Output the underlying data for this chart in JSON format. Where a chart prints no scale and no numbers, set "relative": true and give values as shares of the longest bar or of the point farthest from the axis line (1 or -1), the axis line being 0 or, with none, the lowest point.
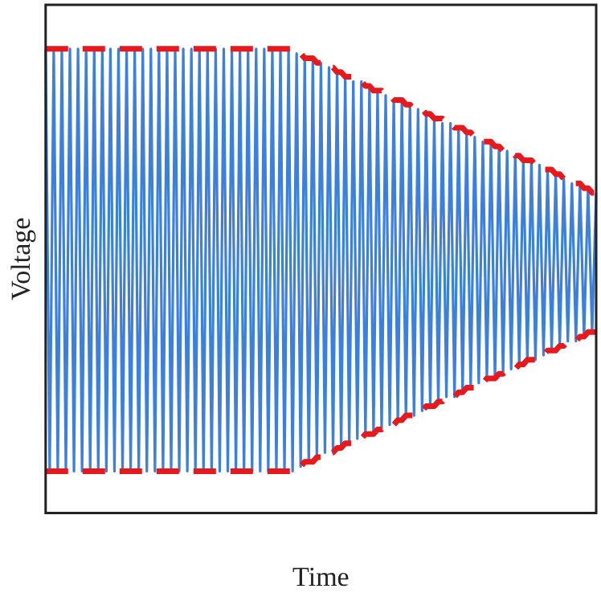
{
  "chart_data": {
    "type": "line",
    "xlabel": "Time",
    "ylabel": "Voltage",
    "relative": true,
    "legend": false,
    "grid": false,
    "marker": "none",
    "categories": [
      null,
      null,
      null,
      null,
      null,
      null,
      null,
      null,
      null,
      null,
      null,
      null,
      null,
      null,
      null,
      null,
      null,
      null,
      null,
      null,
      null,
      null,
      null,
      null,
      null,
      null,
      null,
      null,
      null,
      null,
      null,
      null,
      null,
      null,
      null,
      null,
      null,
      null,
      null,
      null,
      null,
      null,
      null,
      null,
      null,
      null,
      null,
      null,
      null,
      null,
      null,
      null,
      null,
      null,
      null,
      null,
      null,
      null,
      null,
      null,
      null,
      null,
      null,
      null,
      null,
      null,
      null,
      null,
      null,
      null,
      null,
      null,
      null,
      null,
      null,
      null,
      null,
      null,
      null,
      null,
      null,
      null,
      null,
      null,
      null,
      null,
      null,
      null,
      null,
      null,
      null,
      null,
      null,
      null,
      null,
      null,
      null,
      null,
      null,
      null,
      null,
      null,
      null,
      null,
      null,
      null,
      null,
      null,
      null,
      null,
      null,
      null,
      null,
      null,
      null,
      null,
      null,
      null,
      null,
      null,
      null,
      null,
      null,
      null,
      null,
      null,
      null,
      null,
      null,
      null,
      null,
      null,
      null,
      null,
      null,
      null,
      null
    ],
    "series": [
      {
        "color": "#3a80dc",
        "line_style": "solid",
        "values": [
          1,
          0.09,
          1,
          0.09,
          1,
          0.09,
          1,
          0.09,
          1,
          0.09,
          1,
          0.09,
          1,
          0.09,
          1,
          0.09,
          1,
          0.09,
          1,
          0.09,
          1,
          0.09,
          1,
          0.09,
          1,
          0.09,
          1,
          0.09,
          1,
          0.09,
          1,
          0.09,
          1,
          0.09,
          1,
          0.09,
          1,
          0.09,
          1,
          0.09,
          1,
          0.09,
          1,
          0.09,
          1,
          0.09,
          1,
          0.09,
          1,
          0.09,
          1,
          0.09,
          1,
          0.09,
          1,
          0.09,
          1,
          0.09,
          1,
          0.09,
          1,
          0.09,
          0.99,
          0.1,
          0.98,
          0.11,
          0.98,
          0.12,
          0.97,
          0.13,
          0.96,
          0.13,
          0.95,
          0.14,
          0.94,
          0.15,
          0.93,
          0.16,
          0.93,
          0.17,
          0.92,
          0.17,
          0.91,
          0.18,
          0.9,
          0.19,
          0.89,
          0.2,
          0.89,
          0.21,
          0.88,
          0.21,
          0.87,
          0.22,
          0.86,
          0.23,
          0.85,
          0.24,
          0.84,
          0.25,
          0.84,
          0.25,
          0.83,
          0.26,
          0.82,
          0.27,
          0.81,
          0.28,
          0.8,
          0.29,
          0.8,
          0.29,
          0.79,
          0.3,
          0.78,
          0.31,
          0.77,
          0.32,
          0.76,
          0.33,
          0.76,
          0.33,
          0.75,
          0.34,
          0.74,
          0.35,
          0.73,
          0.36,
          0.72,
          0.37,
          0.71,
          0.37,
          0.71,
          0.38,
          0.7,
          0.39,
          0.69
        ]
      },
      {
        "color": "#e8191c",
        "line_style": "dashed",
        "values": [
          1,
          1,
          1,
          1,
          1,
          1,
          1,
          1,
          1,
          1,
          1,
          1,
          1,
          1,
          1,
          1,
          1,
          1,
          1,
          1,
          1,
          1,
          1,
          1,
          1,
          1,
          1,
          1,
          1,
          1,
          1,
          1,
          1,
          1,
          1,
          1,
          1,
          1,
          1,
          1,
          1,
          1,
          1,
          1,
          1,
          1,
          1,
          1,
          1,
          1,
          1,
          1,
          1,
          1,
          1,
          1,
          1,
          1,
          1,
          1,
          1,
          1.0,
          0.99,
          0.99,
          0.98,
          0.98,
          0.98,
          0.97,
          0.97,
          0.96,
          0.96,
          0.96,
          0.95,
          0.95,
          0.94,
          0.94,
          0.94,
          0.93,
          0.93,
          0.92,
          0.92,
          0.91,
          0.91,
          0.91,
          0.9,
          0.9,
          0.89,
          0.89,
          0.89,
          0.88,
          0.88,
          0.87,
          0.87,
          0.87,
          0.86,
          0.86,
          0.85,
          0.85,
          0.85,
          0.84,
          0.84,
          0.83,
          0.83,
          0.83,
          0.82,
          0.82,
          0.81,
          0.81,
          0.8,
          0.8,
          0.8,
          0.79,
          0.79,
          0.78,
          0.78,
          0.78,
          0.77,
          0.77,
          0.76,
          0.76,
          0.76,
          0.75,
          0.75,
          0.74,
          0.74,
          0.74,
          0.73,
          0.73,
          0.72,
          0.72,
          0.71,
          0.71,
          0.71,
          0.7,
          0.7,
          0.69,
          0.69
        ]
      },
      {
        "color": "#e8191c",
        "line_style": "dashed",
        "values": [
          0.09,
          0.09,
          0.09,
          0.09,
          0.09,
          0.09,
          0.09,
          0.09,
          0.09,
          0.09,
          0.09,
          0.09,
          0.09,
          0.09,
          0.09,
          0.09,
          0.09,
          0.09,
          0.09,
          0.09,
          0.09,
          0.09,
          0.09,
          0.09,
          0.09,
          0.09,
          0.09,
          0.09,
          0.09,
          0.09,
          0.09,
          0.09,
          0.09,
          0.09,
          0.09,
          0.09,
          0.09,
          0.09,
          0.09,
          0.09,
          0.09,
          0.09,
          0.09,
          0.09,
          0.09,
          0.09,
          0.09,
          0.09,
          0.09,
          0.09,
          0.09,
          0.09,
          0.09,
          0.09,
          0.09,
          0.09,
          0.09,
          0.09,
          0.09,
          0.09,
          0.09,
          0.09,
          0.1,
          0.1,
          0.11,
          0.11,
          0.11,
          0.12,
          0.12,
          0.13,
          0.13,
          0.13,
          0.14,
          0.14,
          0.15,
          0.15,
          0.15,
          0.16,
          0.16,
          0.17,
          0.17,
          0.17,
          0.18,
          0.18,
          0.19,
          0.19,
          0.19,
          0.2,
          0.2,
          0.21,
          0.21,
          0.21,
          0.22,
          0.22,
          0.23,
          0.23,
          0.23,
          0.24,
          0.24,
          0.25,
          0.25,
          0.25,
          0.26,
          0.26,
          0.27,
          0.27,
          0.27,
          0.28,
          0.28,
          0.29,
          0.29,
          0.29,
          0.3,
          0.3,
          0.31,
          0.31,
          0.31,
          0.32,
          0.32,
          0.33,
          0.33,
          0.33,
          0.34,
          0.34,
          0.35,
          0.35,
          0.35,
          0.36,
          0.36,
          0.37,
          0.37,
          0.37,
          0.38,
          0.38,
          0.39,
          0.39,
          0.39
        ]
      }
    ]
  }
}
